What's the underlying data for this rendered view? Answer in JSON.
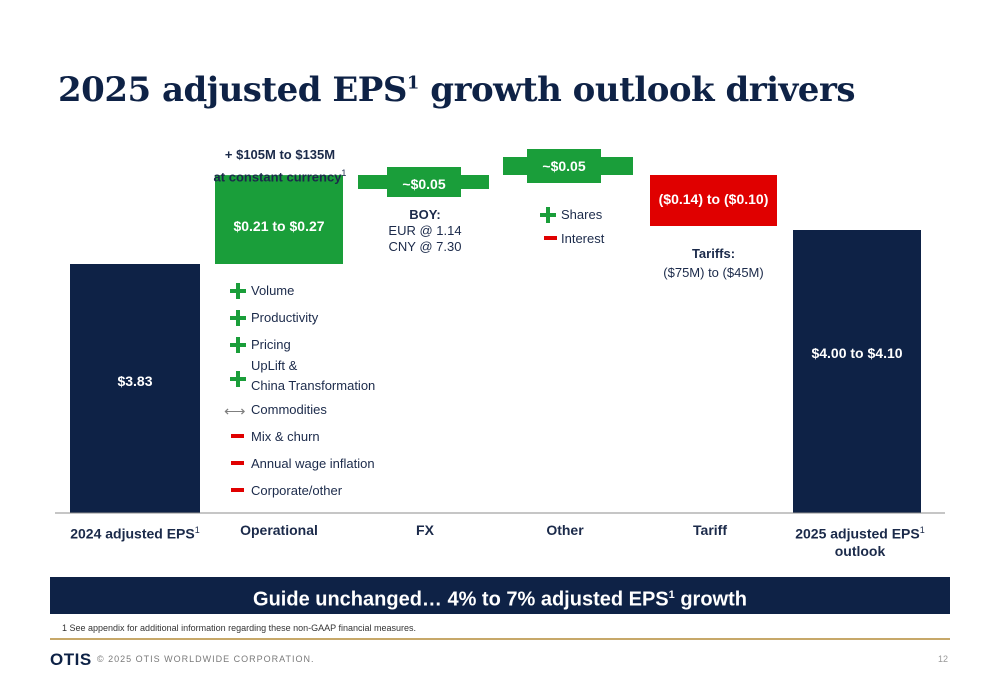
{
  "slide": {
    "title_main": "2025 adjusted EPS",
    "title_sup": "1",
    "title_rest": " growth outlook drivers"
  },
  "chart_data": {
    "type": "bar",
    "subtype": "waterfall",
    "categories": [
      "2024 adjusted EPS",
      "Operational",
      "FX",
      "Other",
      "Tariff",
      "2025 adjusted EPS outlook"
    ],
    "bars": [
      {
        "category": "2024 adjusted EPS",
        "kind": "total",
        "value": 3.83,
        "label": "$3.83",
        "color": "#0e2246"
      },
      {
        "category": "Operational",
        "kind": "increase",
        "low": 0.21,
        "high": 0.27,
        "label": "$0.21 to $0.27",
        "color": "#1a9e3a"
      },
      {
        "category": "FX",
        "kind": "increase",
        "value": 0.05,
        "label": "~$0.05",
        "color": "#1a9e3a"
      },
      {
        "category": "Other",
        "kind": "increase",
        "value": 0.05,
        "label": "~$0.05",
        "color": "#1a9e3a"
      },
      {
        "category": "Tariff",
        "kind": "decrease",
        "low": -0.14,
        "high": -0.1,
        "label": "($0.14) to ($0.10)",
        "color": "#e00000"
      },
      {
        "category": "2025 adjusted EPS outlook",
        "kind": "total",
        "low": 4.0,
        "high": 4.1,
        "label": "$4.00 to $4.10",
        "color": "#0e2246"
      }
    ]
  },
  "xlabels": {
    "c0_main": "2024 adjusted EPS",
    "c0_sup": "1",
    "c1": "Operational",
    "c2": "FX",
    "c3": "Other",
    "c4": "Tariff",
    "c5_line1": "2025 adjusted EPS",
    "c5_sup": "1",
    "c5_line2": "outlook"
  },
  "annotations": {
    "operational_line1": "+ $105M to $135M",
    "operational_line2": "at constant currency",
    "operational_sup": "1",
    "fx_head": "BOY:",
    "fx_eur": "EUR @ 1.14",
    "fx_cny": "CNY @ 7.30",
    "other_shares": "Shares",
    "other_interest": "Interest",
    "tariffs_head": "Tariffs:",
    "tariffs_range": "($75M) to ($45M)"
  },
  "drivers": [
    {
      "sign": "plus",
      "label": "Volume"
    },
    {
      "sign": "plus",
      "label": "Productivity"
    },
    {
      "sign": "plus",
      "label": "Pricing"
    },
    {
      "sign": "plus",
      "label_line1": "UpLift &",
      "label_line2": "China Transformation"
    },
    {
      "sign": "neutral",
      "label": "Commodities"
    },
    {
      "sign": "minus",
      "label": "Mix & churn"
    },
    {
      "sign": "minus",
      "label": "Annual wage inflation"
    },
    {
      "sign": "minus",
      "label": "Corporate/other"
    }
  ],
  "banner": {
    "text_main": "Guide unchanged… 4% to 7% adjusted EPS",
    "sup": "1",
    "text_rest": " growth"
  },
  "footnote": "1 See appendix for additional information regarding these non-GAAP financial measures.",
  "footer": {
    "logo": "OTIS",
    "copyright": "© 2025 OTIS WORLDWIDE CORPORATION.",
    "page": "12"
  },
  "colors": {
    "navy": "#0e2246",
    "green": "#1a9e3a",
    "red": "#e00000",
    "gold": "#c7a869"
  }
}
